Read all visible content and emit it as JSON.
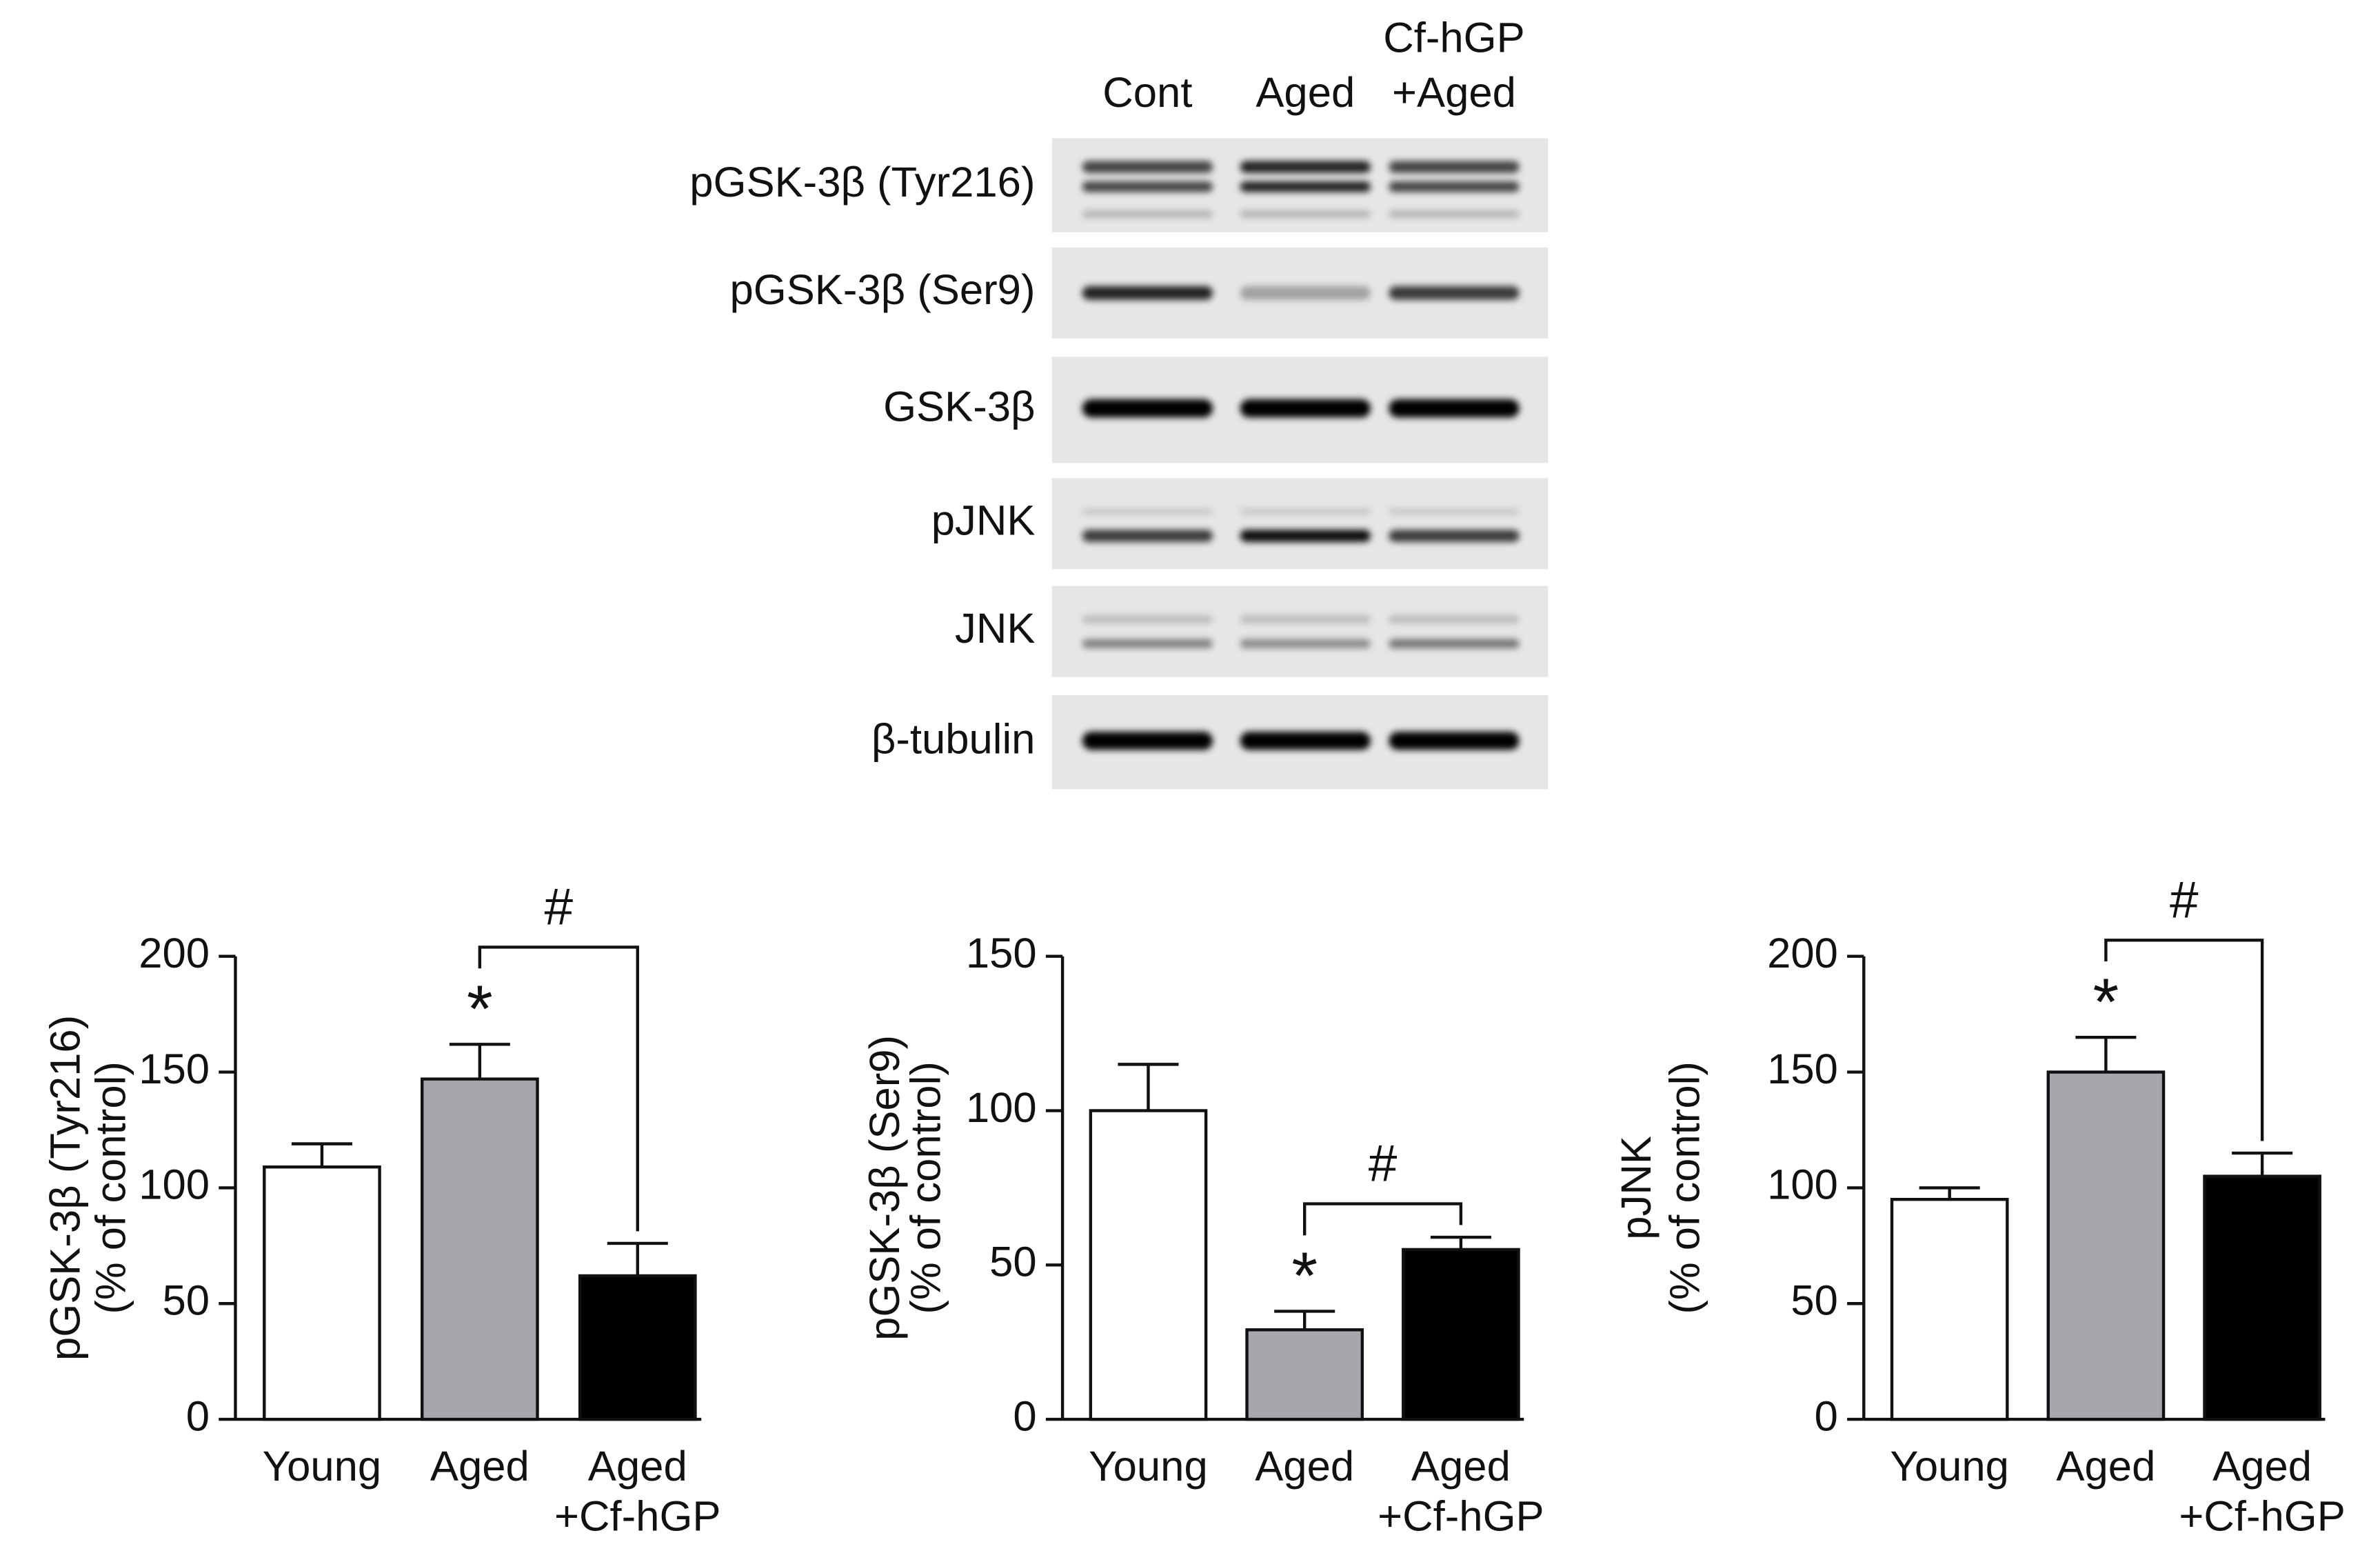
{
  "blot": {
    "lanes": [
      [
        "Cont"
      ],
      [
        "Aged"
      ],
      [
        "Cf-hGP",
        "+Aged"
      ]
    ],
    "rows": [
      "pGSK-3β (Tyr216)",
      "pGSK-3β (Ser9)",
      "GSK-3β",
      "pJNK",
      "JNK",
      "β-tubulin"
    ]
  },
  "chart_data": [
    {
      "type": "bar",
      "ylabel": [
        "pGSK-3β (Tyr216)",
        "(% of control)"
      ],
      "categories": [
        [
          "Young"
        ],
        [
          "Aged"
        ],
        [
          "Aged",
          "+Cf-hGP"
        ]
      ],
      "values": [
        109,
        147,
        62
      ],
      "errors": [
        10,
        15,
        14
      ],
      "colors": [
        "#ffffff",
        "#a7a6ad",
        "#000000"
      ],
      "ylim": [
        0,
        200
      ],
      "yticks": [
        0,
        50,
        100,
        150,
        200
      ],
      "markers": [
        {
          "text": "*",
          "category": 1
        }
      ],
      "brackets": [
        {
          "text": "#",
          "from": 1,
          "to": 2
        }
      ]
    },
    {
      "type": "bar",
      "ylabel": [
        "pGSK-3β (Ser9)",
        "(% of control)"
      ],
      "categories": [
        [
          "Young"
        ],
        [
          "Aged"
        ],
        [
          "Aged",
          "+Cf-hGP"
        ]
      ],
      "values": [
        100,
        29,
        55
      ],
      "errors": [
        15,
        6,
        4
      ],
      "colors": [
        "#ffffff",
        "#a7a6ad",
        "#000000"
      ],
      "ylim": [
        0,
        150
      ],
      "yticks": [
        0,
        50,
        100,
        150
      ],
      "markers": [
        {
          "text": "*",
          "category": 1
        }
      ],
      "brackets": [
        {
          "text": "#",
          "from": 1,
          "to": 2
        }
      ]
    },
    {
      "type": "bar",
      "ylabel": [
        "pJNK",
        "(% of control)"
      ],
      "categories": [
        [
          "Young"
        ],
        [
          "Aged"
        ],
        [
          "Aged",
          "+Cf-hGP"
        ]
      ],
      "values": [
        95,
        150,
        105
      ],
      "errors": [
        5,
        15,
        10
      ],
      "colors": [
        "#ffffff",
        "#a7a6ad",
        "#000000"
      ],
      "ylim": [
        0,
        200
      ],
      "yticks": [
        0,
        50,
        100,
        150,
        200
      ],
      "markers": [
        {
          "text": "*",
          "category": 1
        }
      ],
      "brackets": [
        {
          "text": "#",
          "from": 1,
          "to": 2
        }
      ]
    }
  ]
}
